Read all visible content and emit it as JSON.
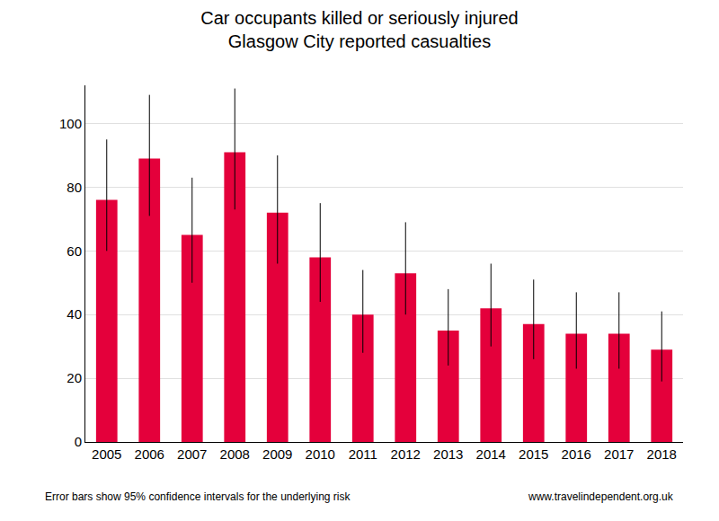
{
  "chart_data": {
    "type": "bar",
    "title": "Car occupants killed or seriously injured",
    "subtitle": "Glasgow City reported casualties",
    "categories": [
      "2005",
      "2006",
      "2007",
      "2008",
      "2009",
      "2010",
      "2011",
      "2012",
      "2013",
      "2014",
      "2015",
      "2016",
      "2017",
      "2018"
    ],
    "values": [
      76,
      89,
      65,
      91,
      72,
      58,
      40,
      53,
      35,
      42,
      37,
      34,
      34,
      29
    ],
    "ci_lower": [
      60,
      71,
      50,
      73,
      56,
      44,
      28,
      40,
      24,
      30,
      26,
      23,
      23,
      19
    ],
    "ci_upper": [
      95,
      109,
      83,
      111,
      90,
      75,
      54,
      69,
      48,
      56,
      51,
      47,
      47,
      41
    ],
    "color": "#e4003b",
    "ylim": [
      0,
      112
    ],
    "yticks": [
      0,
      20,
      40,
      60,
      80,
      100
    ],
    "grid": true,
    "annotations": [
      "Error bars show 95% confidence intervals for the underlying risk",
      "www.travelindependent.org.uk"
    ]
  }
}
